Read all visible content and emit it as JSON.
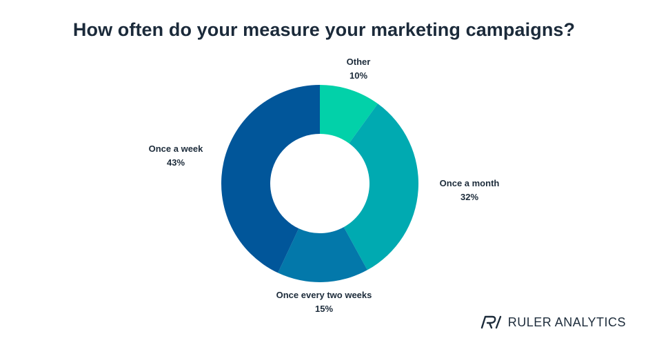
{
  "chart_data": {
    "type": "pie",
    "title": "How often do your measure your marketing campaigns?",
    "donut": true,
    "slices": [
      {
        "label": "Other",
        "value": 10,
        "value_label": "10%",
        "color": "#02d1a9"
      },
      {
        "label": "Once a month",
        "value": 32,
        "value_label": "32%",
        "color": "#00aab1"
      },
      {
        "label": "Once every two weeks",
        "value": 15,
        "value_label": "15%",
        "color": "#0378aa"
      },
      {
        "label": "Once a week",
        "value": 43,
        "value_label": "43%",
        "color": "#01569a"
      }
    ]
  },
  "brand": {
    "name": "RULER ANALYTICS",
    "logo_icon": "ruler-r-logo-icon"
  }
}
